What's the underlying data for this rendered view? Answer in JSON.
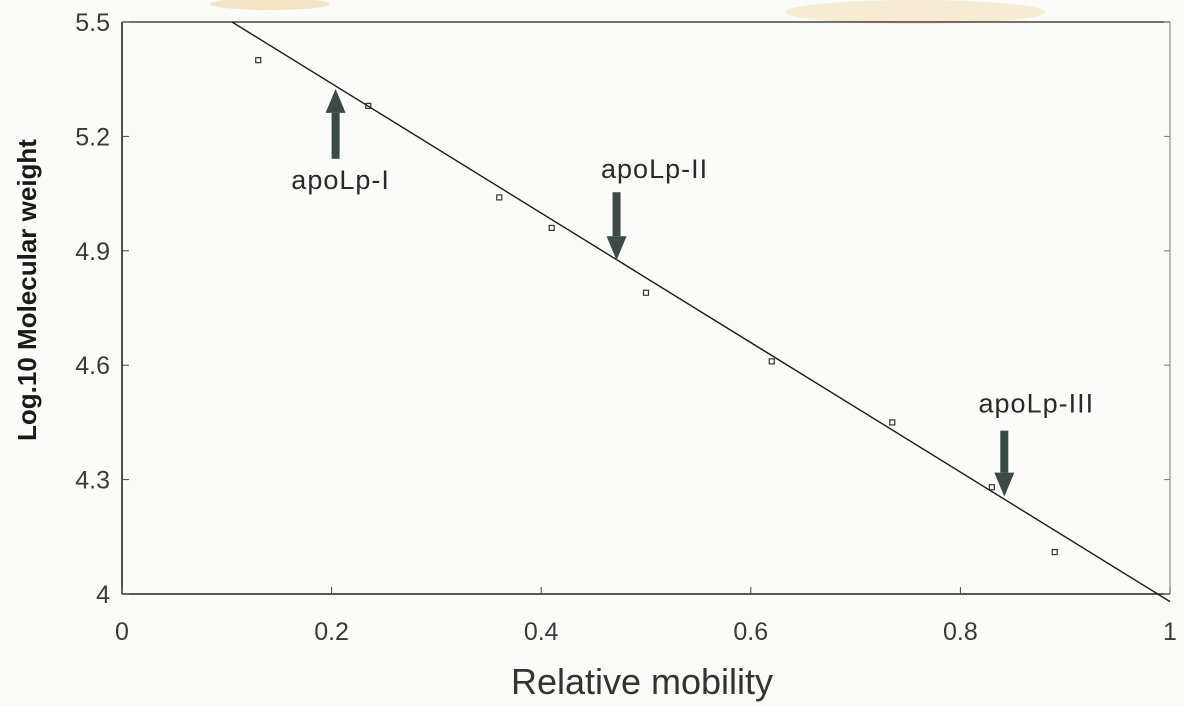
{
  "chart_data": {
    "type": "scatter",
    "xlabel": "Relative mobility",
    "ylabel": "Log.10 Molecular weight",
    "xlim": [
      0,
      1
    ],
    "ylim": [
      4.0,
      5.5
    ],
    "x_ticks": [
      "0",
      "0.2",
      "0.4",
      "0.6",
      "0.8",
      "1"
    ],
    "y_ticks": [
      "5.5",
      "5.2",
      "4.9",
      "4.6",
      "4.3",
      "4"
    ],
    "grid": false,
    "points": [
      {
        "x": 0.13,
        "y": 5.4
      },
      {
        "x": 0.235,
        "y": 5.28
      },
      {
        "x": 0.36,
        "y": 5.04
      },
      {
        "x": 0.41,
        "y": 4.96
      },
      {
        "x": 0.5,
        "y": 4.79
      },
      {
        "x": 0.62,
        "y": 4.61
      },
      {
        "x": 0.735,
        "y": 4.45
      },
      {
        "x": 0.83,
        "y": 4.28
      },
      {
        "x": 0.89,
        "y": 4.11
      }
    ],
    "fit_line": [
      {
        "x": 0.105,
        "y": 5.5
      },
      {
        "x": 1.0,
        "y": 3.98
      }
    ],
    "annotations": [
      {
        "label": "apoLp-I",
        "x": 0.2,
        "y": 5.33
      },
      {
        "label": "apoLp-II",
        "x": 0.47,
        "y": 4.87
      },
      {
        "label": "apoLp-III",
        "x": 0.84,
        "y": 4.25
      }
    ],
    "colors": {
      "line": "#1a1a1a",
      "arrow": "#3b4a44",
      "point": "#333333"
    }
  }
}
